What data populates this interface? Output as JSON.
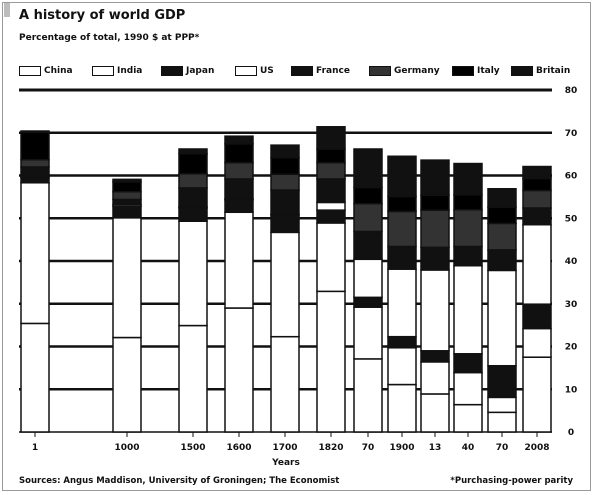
{
  "chart_data": {
    "type": "bar",
    "stacked": true,
    "title": "A history of world GDP",
    "subtitle": "Percentage of total, 1990 $ at PPP*",
    "xlabel": "Years",
    "ylabel": "",
    "ylim": [
      0,
      80
    ],
    "yticks": [
      0,
      10,
      20,
      30,
      40,
      50,
      60,
      70,
      80
    ],
    "grid": true,
    "legend_position": "top",
    "categories": [
      "1",
      "1000",
      "1500",
      "1600",
      "1700",
      "1820",
      "70",
      "1900",
      "13",
      "40",
      "70",
      "2008"
    ],
    "series": [
      {
        "name": "China",
        "color": "#ffffff",
        "values": [
          25.4,
          22.1,
          24.9,
          29.0,
          22.3,
          32.9,
          17.1,
          11.1,
          8.9,
          6.4,
          4.6,
          17.5
        ]
      },
      {
        "name": "India",
        "color": "#ffffff",
        "values": [
          32.9,
          28.0,
          24.4,
          22.4,
          24.4,
          16.0,
          12.1,
          8.6,
          7.5,
          7.5,
          3.5,
          6.7
        ]
      },
      {
        "name": "Japan",
        "color": "#111111",
        "values": [
          1.2,
          2.7,
          3.1,
          2.9,
          4.1,
          3.0,
          2.3,
          2.6,
          2.6,
          4.4,
          7.4,
          5.7
        ]
      },
      {
        "name": "US",
        "color": "#ffffff",
        "values": [
          0.3,
          0.4,
          0.3,
          0.2,
          0.1,
          1.8,
          8.9,
          15.8,
          18.9,
          20.6,
          22.3,
          18.6
        ]
      },
      {
        "name": "France",
        "color": "#111111",
        "values": [
          2.2,
          1.2,
          4.4,
          4.7,
          5.7,
          5.5,
          6.5,
          5.3,
          5.3,
          4.5,
          4.8,
          3.9
        ]
      },
      {
        "name": "Germany",
        "color": "#333333",
        "values": [
          1.7,
          1.8,
          3.3,
          3.8,
          3.7,
          3.8,
          6.5,
          8.2,
          8.7,
          8.6,
          6.2,
          4.1
        ]
      },
      {
        "name": "Italy",
        "color": "#000000",
        "values": [
          6.4,
          2.3,
          4.7,
          4.4,
          3.9,
          3.2,
          3.8,
          3.5,
          3.5,
          3.5,
          3.8,
          2.8
        ]
      },
      {
        "name": "Britain",
        "color": "#111111",
        "values": [
          0.3,
          0.6,
          1.1,
          1.8,
          2.9,
          5.2,
          9.0,
          9.4,
          8.2,
          7.3,
          4.3,
          2.8
        ]
      }
    ]
  },
  "source": "Sources: Angus Maddison, University of Groningen; The Economist",
  "footnote": "*Purchasing-power parity"
}
